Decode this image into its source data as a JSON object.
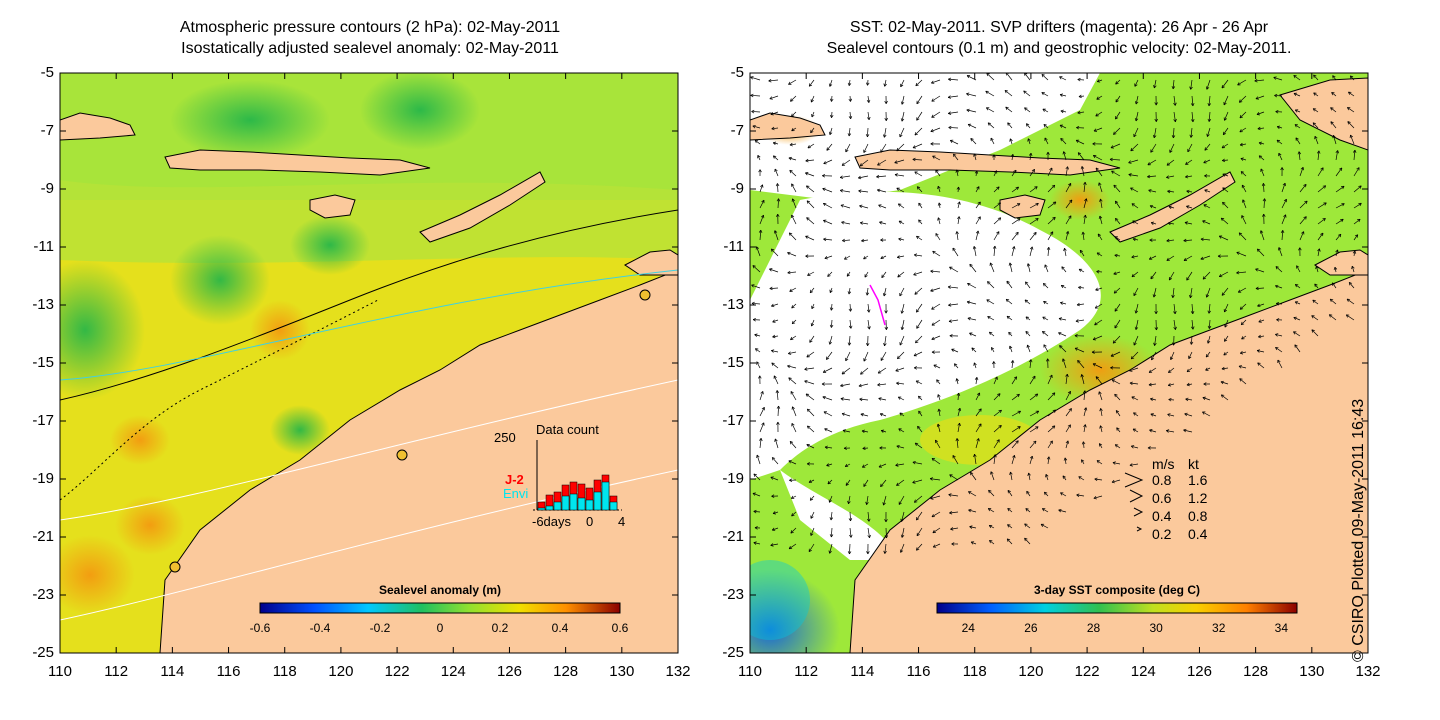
{
  "left_panel": {
    "title_line1": "Atmospheric pressure contours (2 hPa): 02-May-2011",
    "title_line2": "Isostatically adjusted sealevel anomaly: 02-May-2011",
    "x_ticks": [
      "110",
      "112",
      "114",
      "116",
      "118",
      "120",
      "122",
      "124",
      "126",
      "128",
      "130",
      "132"
    ],
    "y_ticks": [
      "-5",
      "-7",
      "-9",
      "-11",
      "-13",
      "-15",
      "-17",
      "-19",
      "-21",
      "-23",
      "-25"
    ],
    "colorbar": {
      "title": "Sealevel anomaly (m)",
      "ticks": [
        "-0.6",
        "-0.4",
        "-0.2",
        "0",
        "0.2",
        "0.4",
        "0.6"
      ],
      "range": [
        -0.6,
        0.6
      ]
    },
    "inset": {
      "title": "Data count",
      "y_max_label": "250",
      "x_labels": [
        "-6days",
        "0",
        "4"
      ],
      "series": [
        {
          "name": "J-2",
          "color": "#ff0000"
        },
        {
          "name": "Envi",
          "color": "#00e5ee"
        }
      ]
    }
  },
  "right_panel": {
    "title_line1": "SST: 02-May-2011. SVP drifters (magenta): 26 Apr - 26 Apr",
    "title_line2": "Sealevel contours (0.1 m) and geostrophic velocity: 02-May-2011.",
    "x_ticks": [
      "110",
      "112",
      "114",
      "116",
      "118",
      "120",
      "122",
      "124",
      "126",
      "128",
      "130",
      "132"
    ],
    "y_ticks": [
      "-5",
      "-7",
      "-9",
      "-11",
      "-13",
      "-15",
      "-17",
      "-19",
      "-21",
      "-23",
      "-25"
    ],
    "colorbar": {
      "title": "3-day SST composite (deg C)",
      "ticks": [
        "24",
        "26",
        "28",
        "30",
        "32",
        "34"
      ],
      "range": [
        23,
        34.5
      ]
    },
    "velocity_legend": {
      "header_ms": "m/s",
      "header_kt": "kt",
      "rows": [
        {
          "ms": "0.8",
          "kt": "1.6"
        },
        {
          "ms": "0.6",
          "kt": "1.2"
        },
        {
          "ms": "0.4",
          "kt": "0.8"
        },
        {
          "ms": "0.2",
          "kt": "0.4"
        }
      ]
    }
  },
  "copyright": "© CSIRO Plotted 09-May-2011 16:43",
  "colors": {
    "land": "#fbc99c",
    "ocean_green": "#9ee83a",
    "ocean_yellow": "#f2dc10",
    "cloud": "#ffffff"
  }
}
